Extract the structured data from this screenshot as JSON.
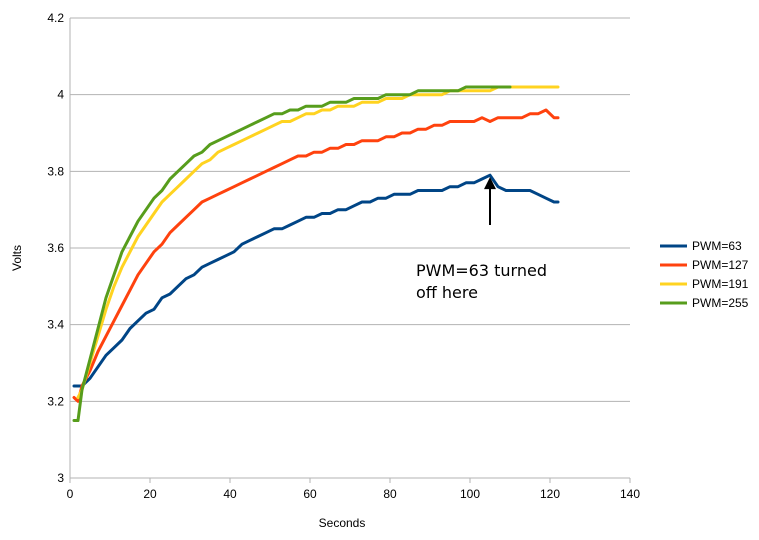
{
  "chart_data": {
    "type": "line",
    "title": "",
    "xlabel": "Seconds",
    "ylabel": "Volts",
    "xlim": [
      0,
      140
    ],
    "ylim": [
      3,
      4.2
    ],
    "x_ticks": [
      "0",
      "20",
      "40",
      "60",
      "80",
      "100",
      "120",
      "140"
    ],
    "y_ticks": [
      "3",
      "3.2",
      "3.4",
      "3.6",
      "3.8",
      "4",
      "4.2"
    ],
    "grid": "horizontal",
    "legend_position": "right",
    "annotation": {
      "lines": [
        "PWM=63 turned",
        "off here"
      ],
      "arrow_from": [
        105,
        3.66
      ],
      "arrow_to": [
        105,
        3.79
      ]
    },
    "series": [
      {
        "name": "PWM=63",
        "color": "#004586",
        "points": [
          [
            1,
            3.24
          ],
          [
            3,
            3.24
          ],
          [
            5,
            3.26
          ],
          [
            7,
            3.29
          ],
          [
            9,
            3.32
          ],
          [
            11,
            3.34
          ],
          [
            13,
            3.36
          ],
          [
            15,
            3.39
          ],
          [
            17,
            3.41
          ],
          [
            19,
            3.43
          ],
          [
            21,
            3.44
          ],
          [
            23,
            3.47
          ],
          [
            25,
            3.48
          ],
          [
            27,
            3.5
          ],
          [
            29,
            3.52
          ],
          [
            31,
            3.53
          ],
          [
            33,
            3.55
          ],
          [
            35,
            3.56
          ],
          [
            37,
            3.57
          ],
          [
            39,
            3.58
          ],
          [
            41,
            3.59
          ],
          [
            43,
            3.61
          ],
          [
            45,
            3.62
          ],
          [
            47,
            3.63
          ],
          [
            49,
            3.64
          ],
          [
            51,
            3.65
          ],
          [
            53,
            3.65
          ],
          [
            55,
            3.66
          ],
          [
            57,
            3.67
          ],
          [
            59,
            3.68
          ],
          [
            61,
            3.68
          ],
          [
            63,
            3.69
          ],
          [
            65,
            3.69
          ],
          [
            67,
            3.7
          ],
          [
            69,
            3.7
          ],
          [
            71,
            3.71
          ],
          [
            73,
            3.72
          ],
          [
            75,
            3.72
          ],
          [
            77,
            3.73
          ],
          [
            79,
            3.73
          ],
          [
            81,
            3.74
          ],
          [
            83,
            3.74
          ],
          [
            85,
            3.74
          ],
          [
            87,
            3.75
          ],
          [
            89,
            3.75
          ],
          [
            91,
            3.75
          ],
          [
            93,
            3.75
          ],
          [
            95,
            3.76
          ],
          [
            97,
            3.76
          ],
          [
            99,
            3.77
          ],
          [
            101,
            3.77
          ],
          [
            103,
            3.78
          ],
          [
            105,
            3.79
          ],
          [
            107,
            3.76
          ],
          [
            109,
            3.75
          ],
          [
            111,
            3.75
          ],
          [
            113,
            3.75
          ],
          [
            115,
            3.75
          ],
          [
            117,
            3.74
          ],
          [
            119,
            3.73
          ],
          [
            121,
            3.72
          ],
          [
            122,
            3.72
          ]
        ]
      },
      {
        "name": "PWM=127",
        "color": "#ff420e",
        "points": [
          [
            1,
            3.21
          ],
          [
            2,
            3.2
          ],
          [
            3,
            3.24
          ],
          [
            5,
            3.28
          ],
          [
            7,
            3.33
          ],
          [
            9,
            3.37
          ],
          [
            11,
            3.41
          ],
          [
            13,
            3.45
          ],
          [
            15,
            3.49
          ],
          [
            17,
            3.53
          ],
          [
            19,
            3.56
          ],
          [
            21,
            3.59
          ],
          [
            23,
            3.61
          ],
          [
            25,
            3.64
          ],
          [
            27,
            3.66
          ],
          [
            29,
            3.68
          ],
          [
            31,
            3.7
          ],
          [
            33,
            3.72
          ],
          [
            35,
            3.73
          ],
          [
            37,
            3.74
          ],
          [
            39,
            3.75
          ],
          [
            41,
            3.76
          ],
          [
            43,
            3.77
          ],
          [
            45,
            3.78
          ],
          [
            47,
            3.79
          ],
          [
            49,
            3.8
          ],
          [
            51,
            3.81
          ],
          [
            53,
            3.82
          ],
          [
            55,
            3.83
          ],
          [
            57,
            3.84
          ],
          [
            59,
            3.84
          ],
          [
            61,
            3.85
          ],
          [
            63,
            3.85
          ],
          [
            65,
            3.86
          ],
          [
            67,
            3.86
          ],
          [
            69,
            3.87
          ],
          [
            71,
            3.87
          ],
          [
            73,
            3.88
          ],
          [
            75,
            3.88
          ],
          [
            77,
            3.88
          ],
          [
            79,
            3.89
          ],
          [
            81,
            3.89
          ],
          [
            83,
            3.9
          ],
          [
            85,
            3.9
          ],
          [
            87,
            3.91
          ],
          [
            89,
            3.91
          ],
          [
            91,
            3.92
          ],
          [
            93,
            3.92
          ],
          [
            95,
            3.93
          ],
          [
            97,
            3.93
          ],
          [
            99,
            3.93
          ],
          [
            101,
            3.93
          ],
          [
            103,
            3.94
          ],
          [
            105,
            3.93
          ],
          [
            107,
            3.94
          ],
          [
            109,
            3.94
          ],
          [
            111,
            3.94
          ],
          [
            113,
            3.94
          ],
          [
            115,
            3.95
          ],
          [
            117,
            3.95
          ],
          [
            119,
            3.96
          ],
          [
            121,
            3.94
          ],
          [
            122,
            3.94
          ]
        ]
      },
      {
        "name": "PWM=191",
        "color": "#ffd320",
        "points": [
          [
            2,
            3.21
          ],
          [
            3,
            3.23
          ],
          [
            5,
            3.3
          ],
          [
            7,
            3.37
          ],
          [
            9,
            3.44
          ],
          [
            11,
            3.5
          ],
          [
            13,
            3.55
          ],
          [
            15,
            3.59
          ],
          [
            17,
            3.63
          ],
          [
            19,
            3.66
          ],
          [
            21,
            3.69
          ],
          [
            23,
            3.72
          ],
          [
            25,
            3.74
          ],
          [
            27,
            3.76
          ],
          [
            29,
            3.78
          ],
          [
            31,
            3.8
          ],
          [
            33,
            3.82
          ],
          [
            35,
            3.83
          ],
          [
            37,
            3.85
          ],
          [
            39,
            3.86
          ],
          [
            41,
            3.87
          ],
          [
            43,
            3.88
          ],
          [
            45,
            3.89
          ],
          [
            47,
            3.9
          ],
          [
            49,
            3.91
          ],
          [
            51,
            3.92
          ],
          [
            53,
            3.93
          ],
          [
            55,
            3.93
          ],
          [
            57,
            3.94
          ],
          [
            59,
            3.95
          ],
          [
            61,
            3.95
          ],
          [
            63,
            3.96
          ],
          [
            65,
            3.96
          ],
          [
            67,
            3.97
          ],
          [
            69,
            3.97
          ],
          [
            71,
            3.97
          ],
          [
            73,
            3.98
          ],
          [
            75,
            3.98
          ],
          [
            77,
            3.98
          ],
          [
            79,
            3.99
          ],
          [
            81,
            3.99
          ],
          [
            83,
            3.99
          ],
          [
            85,
            4.0
          ],
          [
            87,
            4.0
          ],
          [
            89,
            4.0
          ],
          [
            91,
            4.0
          ],
          [
            93,
            4.0
          ],
          [
            95,
            4.01
          ],
          [
            97,
            4.01
          ],
          [
            99,
            4.01
          ],
          [
            101,
            4.01
          ],
          [
            103,
            4.01
          ],
          [
            105,
            4.01
          ],
          [
            107,
            4.02
          ],
          [
            109,
            4.02
          ],
          [
            111,
            4.02
          ],
          [
            113,
            4.02
          ],
          [
            115,
            4.02
          ],
          [
            117,
            4.02
          ],
          [
            119,
            4.02
          ],
          [
            121,
            4.02
          ],
          [
            122,
            4.02
          ]
        ]
      },
      {
        "name": "PWM=255",
        "color": "#579d1c",
        "points": [
          [
            1,
            3.15
          ],
          [
            2,
            3.15
          ],
          [
            3,
            3.23
          ],
          [
            5,
            3.31
          ],
          [
            7,
            3.39
          ],
          [
            9,
            3.47
          ],
          [
            11,
            3.53
          ],
          [
            13,
            3.59
          ],
          [
            15,
            3.63
          ],
          [
            17,
            3.67
          ],
          [
            19,
            3.7
          ],
          [
            21,
            3.73
          ],
          [
            23,
            3.75
          ],
          [
            25,
            3.78
          ],
          [
            27,
            3.8
          ],
          [
            29,
            3.82
          ],
          [
            31,
            3.84
          ],
          [
            33,
            3.85
          ],
          [
            35,
            3.87
          ],
          [
            37,
            3.88
          ],
          [
            39,
            3.89
          ],
          [
            41,
            3.9
          ],
          [
            43,
            3.91
          ],
          [
            45,
            3.92
          ],
          [
            47,
            3.93
          ],
          [
            49,
            3.94
          ],
          [
            51,
            3.95
          ],
          [
            53,
            3.95
          ],
          [
            55,
            3.96
          ],
          [
            57,
            3.96
          ],
          [
            59,
            3.97
          ],
          [
            61,
            3.97
          ],
          [
            63,
            3.97
          ],
          [
            65,
            3.98
          ],
          [
            67,
            3.98
          ],
          [
            69,
            3.98
          ],
          [
            71,
            3.99
          ],
          [
            73,
            3.99
          ],
          [
            75,
            3.99
          ],
          [
            77,
            3.99
          ],
          [
            79,
            4.0
          ],
          [
            81,
            4.0
          ],
          [
            83,
            4.0
          ],
          [
            85,
            4.0
          ],
          [
            87,
            4.01
          ],
          [
            89,
            4.01
          ],
          [
            91,
            4.01
          ],
          [
            93,
            4.01
          ],
          [
            95,
            4.01
          ],
          [
            97,
            4.01
          ],
          [
            99,
            4.02
          ],
          [
            101,
            4.02
          ],
          [
            103,
            4.02
          ],
          [
            105,
            4.02
          ],
          [
            107,
            4.02
          ],
          [
            109,
            4.02
          ],
          [
            110,
            4.02
          ]
        ]
      }
    ]
  }
}
